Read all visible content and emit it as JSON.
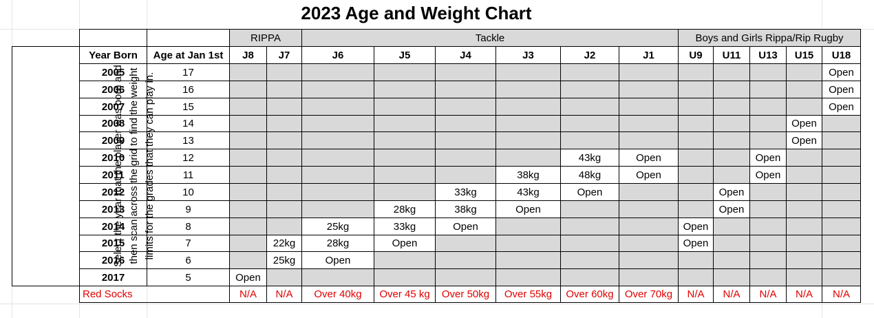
{
  "title": "2023 Age and Weight Chart",
  "instructions": [
    "Select the year that the player was born and",
    "then scan across the grid to find the weight",
    "limits for the grades that they can play in."
  ],
  "groups": [
    "RIPPA",
    "Tackle",
    "Boys and Girls Rippa/Rip Rugby"
  ],
  "headers": {
    "year": "Year Born",
    "age": "Age at Jan 1st",
    "grades": [
      "J8",
      "J7",
      "J6",
      "J5",
      "J4",
      "J3",
      "J2",
      "J1",
      "U9",
      "U11",
      "U13",
      "U15",
      "U18"
    ]
  },
  "rows": [
    {
      "year": 2005,
      "age": 17,
      "cells": [
        null,
        null,
        null,
        null,
        null,
        null,
        null,
        null,
        null,
        null,
        null,
        null,
        "Open"
      ]
    },
    {
      "year": 2006,
      "age": 16,
      "cells": [
        null,
        null,
        null,
        null,
        null,
        null,
        null,
        null,
        null,
        null,
        null,
        null,
        "Open"
      ]
    },
    {
      "year": 2007,
      "age": 15,
      "cells": [
        null,
        null,
        null,
        null,
        null,
        null,
        null,
        null,
        null,
        null,
        null,
        null,
        "Open"
      ]
    },
    {
      "year": 2008,
      "age": 14,
      "cells": [
        null,
        null,
        null,
        null,
        null,
        null,
        null,
        null,
        null,
        null,
        null,
        "Open",
        null
      ]
    },
    {
      "year": 2009,
      "age": 13,
      "cells": [
        null,
        null,
        null,
        null,
        null,
        null,
        null,
        null,
        null,
        null,
        null,
        "Open",
        null
      ]
    },
    {
      "year": 2010,
      "age": 12,
      "cells": [
        null,
        null,
        null,
        null,
        null,
        null,
        "43kg",
        "Open",
        null,
        null,
        "Open",
        null,
        null
      ]
    },
    {
      "year": 2011,
      "age": 11,
      "cells": [
        null,
        null,
        null,
        null,
        null,
        "38kg",
        "48kg",
        "Open",
        null,
        null,
        "Open",
        null,
        null
      ]
    },
    {
      "year": 2012,
      "age": 10,
      "cells": [
        null,
        null,
        null,
        null,
        "33kg",
        "43kg",
        "Open",
        null,
        null,
        "Open",
        null,
        null,
        null
      ]
    },
    {
      "year": 2013,
      "age": 9,
      "cells": [
        null,
        null,
        null,
        "28kg",
        "38kg",
        "Open",
        null,
        null,
        null,
        "Open",
        null,
        null,
        null
      ]
    },
    {
      "year": 2014,
      "age": 8,
      "cells": [
        null,
        null,
        "25kg",
        "33kg",
        "Open",
        null,
        null,
        null,
        "Open",
        null,
        null,
        null,
        null
      ]
    },
    {
      "year": 2015,
      "age": 7,
      "cells": [
        null,
        "22kg",
        "28kg",
        "Open",
        null,
        null,
        null,
        null,
        "Open",
        null,
        null,
        null,
        null
      ]
    },
    {
      "year": 2016,
      "age": 6,
      "cells": [
        null,
        "25kg",
        "Open",
        null,
        null,
        null,
        null,
        null,
        null,
        null,
        null,
        null,
        null
      ]
    },
    {
      "year": 2017,
      "age": 5,
      "cells": [
        "Open",
        null,
        null,
        null,
        null,
        null,
        null,
        null,
        null,
        null,
        null,
        null,
        null
      ]
    }
  ],
  "footer": {
    "label": "Red Socks",
    "cells": [
      "N/A",
      "N/A",
      "Over 40kg",
      "Over 45 kg",
      "Over 50kg",
      "Over 55kg",
      "Over 60kg",
      "Over 70kg",
      "N/A",
      "N/A",
      "N/A",
      "N/A",
      "N/A"
    ]
  }
}
